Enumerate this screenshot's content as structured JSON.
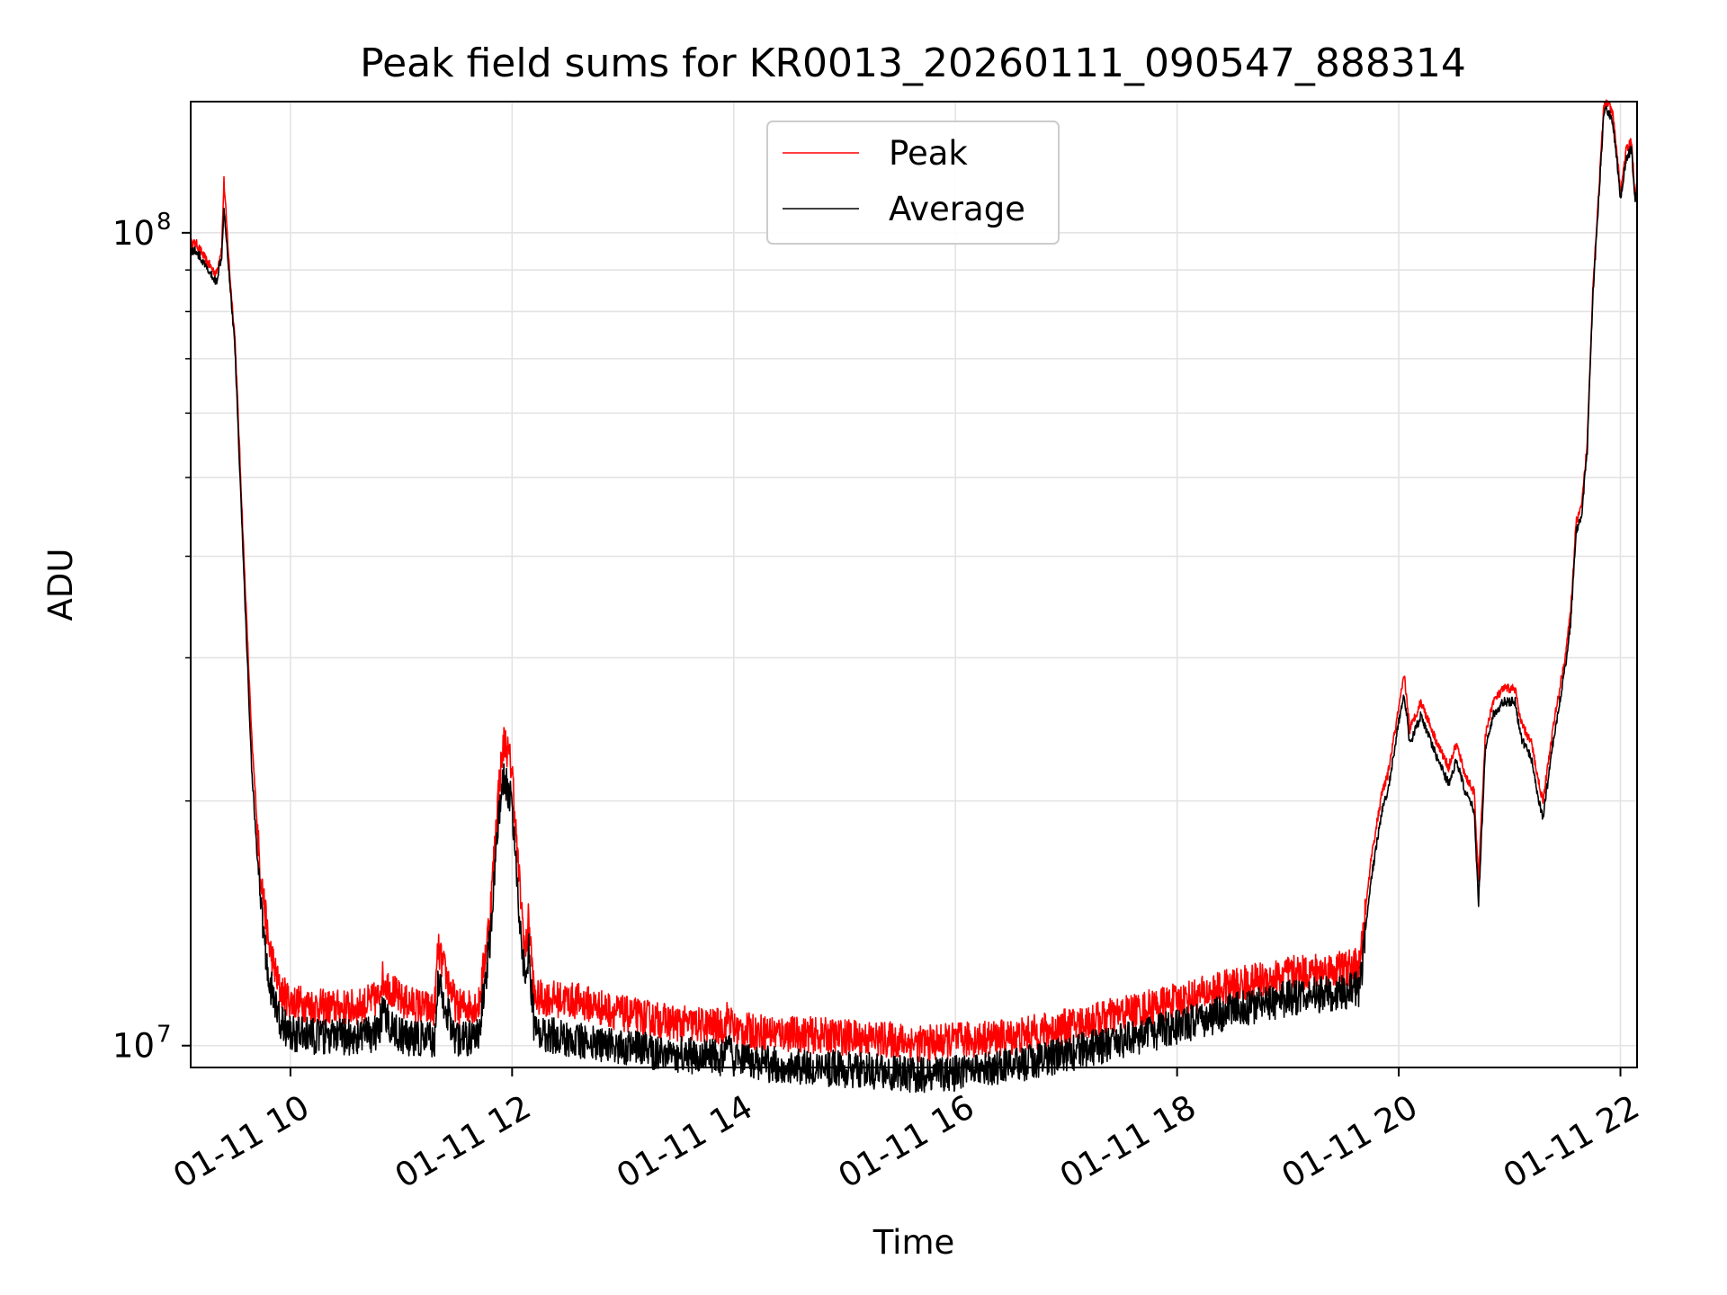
{
  "chart_data": {
    "type": "line",
    "title": "Peak field sums for KR0013_20260111_090547_888314",
    "xlabel": "Time",
    "ylabel": "ADU",
    "x_unit": "hour of 2026-01-11",
    "xlim": [
      9.1,
      22.15
    ],
    "ylim": [
      9400000,
      145000000
    ],
    "yscale": "log",
    "grid": true,
    "legend_position": "top-center",
    "x_ticks": [
      {
        "value": 10,
        "label": "01-11 10"
      },
      {
        "value": 12,
        "label": "01-11 12"
      },
      {
        "value": 14,
        "label": "01-11 14"
      },
      {
        "value": 16,
        "label": "01-11 16"
      },
      {
        "value": 18,
        "label": "01-11 18"
      },
      {
        "value": 20,
        "label": "01-11 20"
      },
      {
        "value": 22,
        "label": "01-11 22"
      }
    ],
    "y_ticks": [
      {
        "value": 10000000,
        "base": "10",
        "exp": "7"
      },
      {
        "value": 100000000,
        "base": "10",
        "exp": "8"
      }
    ],
    "series": [
      {
        "name": "Peak",
        "color": "#ff0000",
        "x": [
          9.1,
          9.15,
          9.25,
          9.33,
          9.38,
          9.4,
          9.45,
          9.5,
          9.58,
          9.65,
          9.72,
          9.8,
          9.9,
          10.0,
          10.3,
          10.6,
          10.8,
          10.82,
          11.0,
          11.3,
          11.33,
          11.5,
          11.7,
          11.8,
          11.88,
          11.93,
          12.0,
          12.05,
          12.12,
          12.15,
          12.2,
          12.3,
          12.6,
          13.0,
          13.5,
          13.92,
          13.95,
          14.0,
          14.5,
          15.0,
          15.5,
          15.7,
          16.0,
          16.5,
          17.0,
          17.5,
          18.0,
          18.5,
          19.0,
          19.5,
          19.65,
          19.75,
          19.85,
          19.9,
          20.0,
          20.05,
          20.1,
          20.2,
          20.35,
          20.45,
          20.52,
          20.6,
          20.68,
          20.72,
          20.78,
          20.85,
          20.95,
          21.05,
          21.1,
          21.2,
          21.25,
          21.3,
          21.4,
          21.5,
          21.55,
          21.6,
          21.65,
          21.7,
          21.75,
          21.8,
          21.85,
          21.88,
          21.93,
          21.97,
          22.0,
          22.05,
          22.1,
          22.13,
          22.15
        ],
        "values": [
          97000000,
          97000000,
          92000000,
          89000000,
          96000000,
          116000000,
          90000000,
          74000000,
          40000000,
          24000000,
          17000000,
          13500000,
          11800000,
          11400000,
          11200000,
          11200000,
          11500000,
          12200000,
          11400000,
          11100000,
          13200000,
          11200000,
          11300000,
          14500000,
          21000000,
          24000000,
          22000000,
          17000000,
          13000000,
          14500000,
          11500000,
          11500000,
          11400000,
          11000000,
          10700000,
          10600000,
          11000000,
          10500000,
          10400000,
          10300000,
          10200000,
          10100000,
          10200000,
          10300000,
          10600000,
          11000000,
          11400000,
          11900000,
          12300000,
          12500000,
          12600000,
          17000000,
          20500000,
          21500000,
          26000000,
          28500000,
          24500000,
          26500000,
          23500000,
          22000000,
          23500000,
          21500000,
          20500000,
          16000000,
          24000000,
          26500000,
          27500000,
          27500000,
          25000000,
          23500000,
          21500000,
          20000000,
          25000000,
          30000000,
          34000000,
          44000000,
          46000000,
          55000000,
          85000000,
          110000000,
          143000000,
          145000000,
          140000000,
          125000000,
          112000000,
          126000000,
          130000000,
          112000000,
          114000000
        ]
      },
      {
        "name": "Average",
        "color": "#000000",
        "x": [
          9.1,
          9.15,
          9.25,
          9.33,
          9.38,
          9.4,
          9.45,
          9.5,
          9.58,
          9.65,
          9.72,
          9.8,
          9.9,
          10.0,
          10.3,
          10.6,
          10.8,
          10.82,
          11.0,
          11.3,
          11.33,
          11.5,
          11.7,
          11.8,
          11.88,
          11.93,
          12.0,
          12.05,
          12.12,
          12.15,
          12.2,
          12.3,
          12.6,
          13.0,
          13.5,
          13.92,
          13.95,
          14.0,
          14.5,
          15.0,
          15.5,
          15.7,
          16.0,
          16.5,
          17.0,
          17.5,
          18.0,
          18.5,
          19.0,
          19.5,
          19.65,
          19.75,
          19.85,
          19.9,
          20.0,
          20.05,
          20.1,
          20.2,
          20.35,
          20.45,
          20.52,
          20.6,
          20.68,
          20.72,
          20.78,
          20.85,
          20.95,
          21.05,
          21.1,
          21.2,
          21.25,
          21.3,
          21.4,
          21.5,
          21.55,
          21.6,
          21.65,
          21.7,
          21.75,
          21.8,
          21.85,
          21.88,
          21.93,
          21.97,
          22.0,
          22.05,
          22.1,
          22.13,
          22.15
        ],
        "values": [
          95000000,
          95000000,
          90000000,
          87000000,
          94000000,
          108000000,
          88000000,
          72000000,
          38000000,
          22000000,
          15500000,
          12200000,
          10800000,
          10400000,
          10300000,
          10300000,
          10400000,
          11000000,
          10300000,
          10200000,
          12000000,
          10200000,
          10300000,
          13500000,
          19500000,
          21500000,
          20000000,
          15500000,
          12000000,
          13200000,
          10500000,
          10400000,
          10200000,
          10000000,
          9800000,
          9700000,
          10000000,
          9600000,
          9500000,
          9400000,
          9300000,
          9250000,
          9300000,
          9500000,
          9800000,
          10200000,
          10600000,
          11100000,
          11500000,
          11700000,
          11800000,
          16000000,
          19500000,
          20500000,
          25000000,
          27000000,
          23500000,
          25500000,
          22500000,
          21000000,
          22500000,
          20500000,
          19500000,
          15000000,
          23000000,
          25500000,
          26500000,
          26500000,
          24000000,
          22500000,
          20500000,
          19000000,
          24000000,
          29000000,
          33000000,
          43000000,
          45000000,
          54000000,
          83000000,
          108000000,
          140000000,
          142000000,
          137000000,
          122000000,
          110000000,
          123000000,
          127000000,
          110000000,
          112000000
        ]
      }
    ]
  }
}
